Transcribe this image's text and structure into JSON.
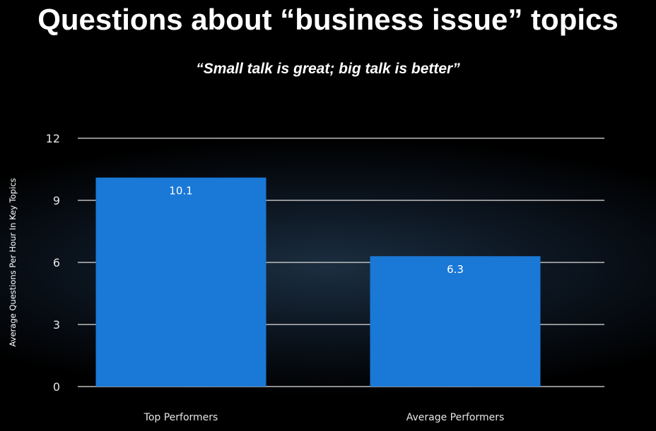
{
  "chart_data": {
    "type": "bar",
    "title": "Questions about “business issue” topics",
    "subtitle": "“Small talk is great; big talk is better”",
    "xlabel": "",
    "ylabel": "Average Questions Per Hour In Key Topics",
    "categories": [
      "Top Performers",
      "Average Performers"
    ],
    "values": [
      10.1,
      6.3
    ],
    "data_labels": [
      "10.1",
      "6.3"
    ],
    "ylim": [
      0,
      12
    ],
    "yticks": [
      0,
      3,
      6,
      9,
      12
    ],
    "grid": true,
    "bar_color": "#1a78d6"
  }
}
